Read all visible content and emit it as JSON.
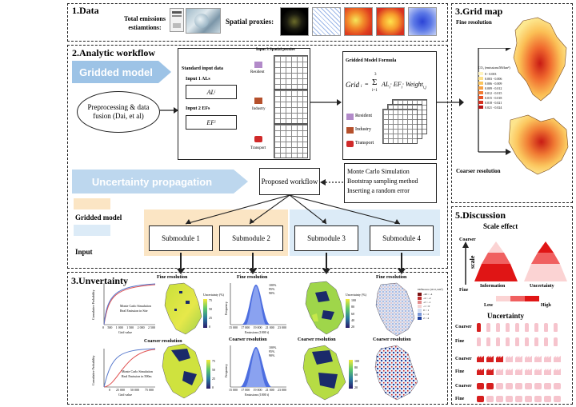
{
  "sections": {
    "data_title": "1.Data",
    "workflow_title": "2.Analytic workflow",
    "grid_map_title": "3.Grid map",
    "uncertainty_title": "3.Unvertainty",
    "discussion_title": "5.Discussion"
  },
  "data_panel": {
    "total_emissions": "Total emissions estiamtions:",
    "spatial_proxies": "Spatial proxies:"
  },
  "workflow": {
    "gridded_model_arrow": "Gridded model",
    "preprocessing": "Preprocessing & data fusion (Dai, et al)",
    "standard_input": "Standard input data",
    "input1": "Input 1 ALs",
    "input1_var": "AL",
    "input1_sub": "i",
    "input2": "Input 2 EFs",
    "input2_var": "EF",
    "input2_sub": "i",
    "input3": "Input 3 Spatial proxies",
    "proxy_resident": "Resident",
    "proxy_industry": "Industry",
    "proxy_transport": "Transport",
    "formula_title": "Gridded Model Formula",
    "formula_lhs": "Grid",
    "formula_lhs_sub": "i",
    "formula_eq": "=",
    "formula_sum_top": "3",
    "formula_sum_bottom": "i=1",
    "formula_rhs": "AL",
    "formula_rhs_2": "· EF",
    "formula_rhs_3": "· Weight",
    "formula_rhs_sub": "i",
    "formula_rhs_sub_3": "i,j",
    "formula_resident": "Resident",
    "formula_industry": "Industry",
    "formula_transport": "Transport",
    "uncertainty_arrow": "Uncertainty propagation",
    "proposed_workflow": "Proposed workflow",
    "methods": [
      "Monte Carlo Simulation",
      "Bootstrap sampling method",
      "Inserting a random error"
    ],
    "legend_gridded": "Gridded model",
    "legend_input": "Input",
    "submodules": [
      "Submodule 1",
      "Submodule 2",
      "Submodule 3",
      "Submodule 4"
    ]
  },
  "grid_map": {
    "fine": "Fine resolution",
    "coarser": "Coarser resolution",
    "legend_title": "CO₂ (emissions/Mt/km²)",
    "legend_items": [
      "0 - 0.003",
      "0.003 - 0.006",
      "0.006 - 0.009",
      "0.009 - 0.012",
      "0.012 - 0.015",
      "0.015 - 0.018",
      "0.018 - 0.021",
      "0.021 - 0.024"
    ],
    "legend_colors": [
      "#fff4c0",
      "#fde08a",
      "#fbc55e",
      "#f7a043",
      "#f27a33",
      "#e85428",
      "#d6301f",
      "#b81515"
    ]
  },
  "uncertainty": {
    "fine": "Fine resolution",
    "coarser": "Coarser resolution",
    "cdf_ylabel": "Cumulative Probability",
    "cdf_legend_1": "Monte Carlo Simulation",
    "cdf_legend_2": "Real Emission in Site",
    "cdf_legend_2b": "Real Emission in 500m",
    "cdf_xlabel": "Grid value",
    "cdf_ticks_fine": [
      "0",
      "500",
      "1 000",
      "1 500",
      "2 000",
      "2 500"
    ],
    "cdf_ticks_coarse": [
      "0",
      "25 000",
      "50 000",
      "75 000"
    ],
    "unc_legend_title": "Uncertainty (%)",
    "unc_ticks": [
      "75",
      "50",
      "25",
      "0"
    ],
    "hist_ylabel": "Frequency",
    "hist_xlabel": "Emissions (1000 t)",
    "hist_ticks": [
      "15 000",
      "17 000",
      "19 000",
      "21 000",
      "23 000"
    ],
    "hist_legend": [
      "100%",
      "95%",
      "90%"
    ],
    "unc3_ticks": [
      "100",
      "80",
      "60",
      "40",
      "20"
    ],
    "diff_legend_title": "Difference (tCO₂/km²)",
    "diff_items": [
      "-40 ~ -4",
      "-4 ~ -2",
      "-2 ~ -1",
      "-1 ~ 0",
      "0 ~ 1",
      "1 ~ 2",
      "2 ~ 4"
    ]
  },
  "discussion": {
    "scale_effect": "Scale effect",
    "coarser": "Coarser",
    "fine": "Fine",
    "scale_label": "scale",
    "information": "Information",
    "uncertainty": "Uncertainty",
    "low": "Low",
    "high": "High",
    "uncertainty_title": "Uncertainty",
    "rows": [
      "Coarser",
      "Fine",
      "Coarser",
      "Fine",
      "Coarser",
      "Fine"
    ]
  }
}
